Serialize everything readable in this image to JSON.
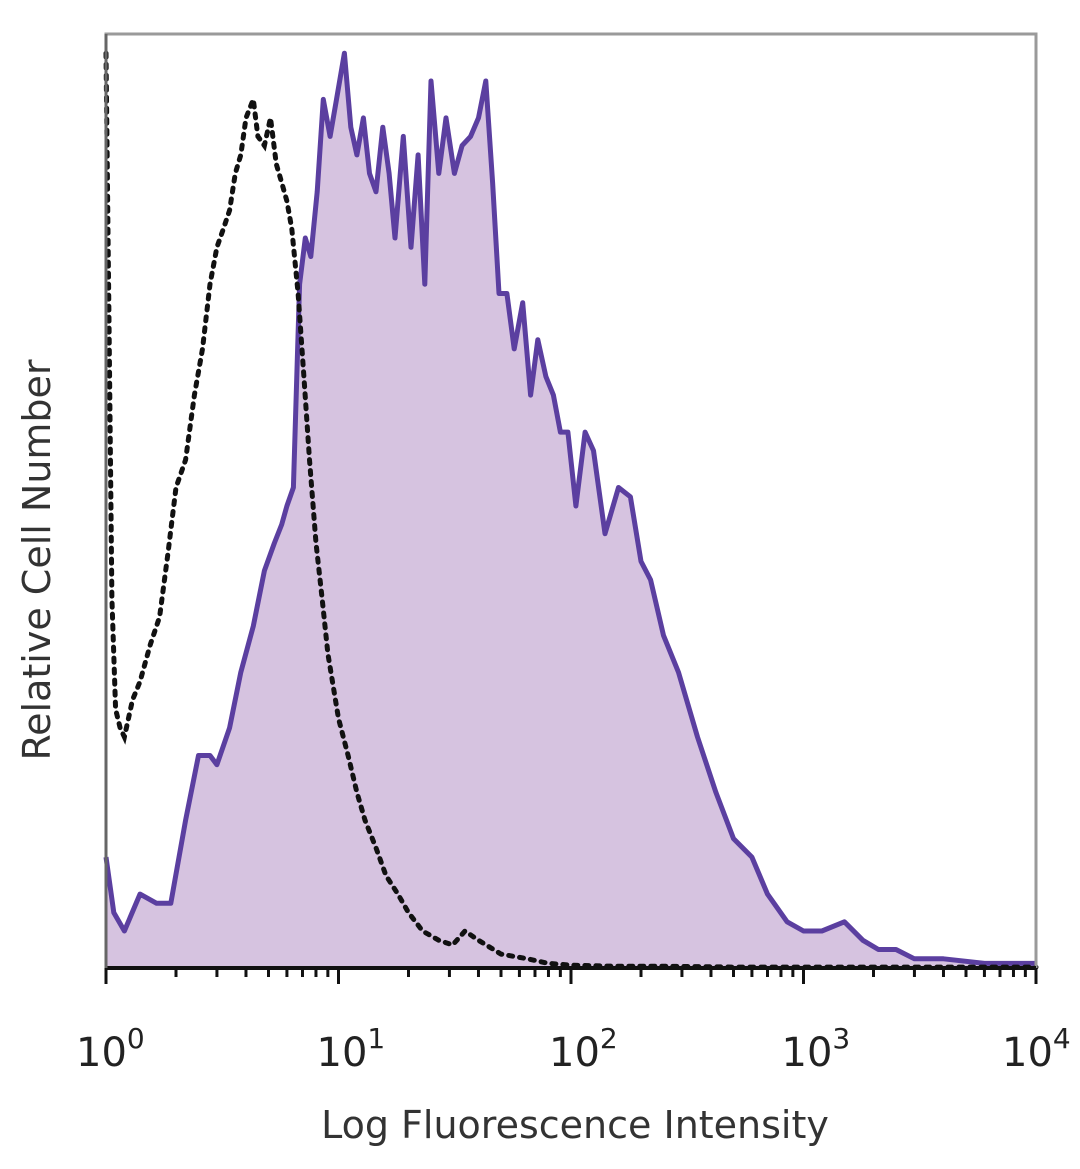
{
  "chart_data": {
    "type": "area",
    "xlabel": "Log Fluorescence Intensity",
    "ylabel": "Relative Cell Number",
    "x_scale": "log",
    "xlim": [
      1,
      10000
    ],
    "ylim": [
      0,
      100
    ],
    "grid": false,
    "x_ticks": [
      {
        "value": 1,
        "base": "10",
        "exp": "0"
      },
      {
        "value": 10,
        "base": "10",
        "exp": "1"
      },
      {
        "value": 100,
        "base": "10",
        "exp": "2"
      },
      {
        "value": 1000,
        "base": "10",
        "exp": "3"
      },
      {
        "value": 10000,
        "base": "10",
        "exp": "4"
      }
    ],
    "series": [
      {
        "style": "filled-solid",
        "color": "#5b3fa0",
        "fill": "#d6c3e0",
        "x": [
          1,
          1.08,
          1.2,
          1.4,
          1.65,
          1.9,
          2.2,
          2.5,
          2.8,
          3.0,
          3.4,
          3.8,
          4.3,
          4.8,
          5.3,
          5.7,
          6.0,
          6.4,
          6.8,
          7.2,
          7.6,
          8.1,
          8.6,
          9.2,
          9.8,
          10.6,
          11.3,
          12.0,
          12.8,
          13.6,
          14.5,
          15.5,
          16.5,
          17.5,
          19.0,
          20.5,
          22.0,
          23.5,
          25.0,
          27.0,
          29.0,
          31.5,
          34.0,
          37.0,
          40.0,
          43.0,
          46.0,
          49.0,
          53.0,
          57.0,
          62.0,
          67.0,
          72.0,
          78.0,
          84.0,
          90.0,
          97.0,
          105.0,
          115.0,
          125.0,
          140.0,
          160.0,
          180.0,
          200.0,
          220.0,
          250.0,
          290.0,
          350.0,
          420.0,
          500.0,
          600.0,
          700.0,
          850.0,
          1000.0,
          1200.0,
          1500.0,
          1800.0,
          2100.0,
          2500.0,
          3000.0,
          4000.0,
          6000.0,
          10000.0
        ],
        "y": [
          12,
          6,
          4,
          8,
          7,
          7,
          16,
          23,
          23,
          22,
          26,
          32,
          37,
          43,
          46,
          48,
          50,
          52,
          74,
          79,
          77,
          84,
          94,
          90,
          94,
          99,
          91,
          88,
          92,
          86,
          84,
          91,
          86,
          79,
          90,
          78,
          88,
          74,
          96,
          86,
          92,
          86,
          89,
          90,
          92,
          96,
          85,
          73,
          73,
          67,
          72,
          62,
          68,
          64,
          62,
          58,
          58,
          50,
          58,
          56,
          47,
          52,
          51,
          44,
          42,
          36,
          32,
          25,
          19,
          14,
          12,
          8,
          5,
          4,
          4,
          5,
          3,
          2,
          2,
          1,
          1,
          0.5,
          0.5
        ]
      },
      {
        "style": "dotted",
        "color": "#111111",
        "x": [
          1,
          1.03,
          1.06,
          1.1,
          1.15,
          1.2,
          1.3,
          1.4,
          1.55,
          1.7,
          1.85,
          2.0,
          2.2,
          2.4,
          2.6,
          2.8,
          3.0,
          3.2,
          3.4,
          3.6,
          3.8,
          4.0,
          4.3,
          4.5,
          4.8,
          5.1,
          5.4,
          5.7,
          6.0,
          6.3,
          6.7,
          7.1,
          7.5,
          8.0,
          8.5,
          9.0,
          10.0,
          11.0,
          12.0,
          13.0,
          14.5,
          16.0,
          18.0,
          20.0,
          23.0,
          27.0,
          31.0,
          35.0,
          40.0,
          50.0,
          65.0,
          80.0,
          100.0,
          150.0,
          250.0,
          500.0,
          1000.0,
          10000.0
        ],
        "y": [
          99,
          70,
          40,
          28,
          26,
          25,
          29,
          31,
          35,
          38,
          45,
          52,
          55,
          62,
          67,
          74,
          78,
          80,
          82,
          86,
          88,
          92,
          94,
          90,
          89,
          92,
          87,
          85,
          83,
          80,
          73,
          64,
          55,
          46,
          40,
          34,
          27,
          23,
          19,
          16,
          13,
          10,
          8,
          6,
          4,
          3,
          2.5,
          4,
          3,
          1.5,
          1,
          0.5,
          0.3,
          0.2,
          0.2,
          0.1,
          0.1,
          0.1
        ]
      }
    ]
  }
}
